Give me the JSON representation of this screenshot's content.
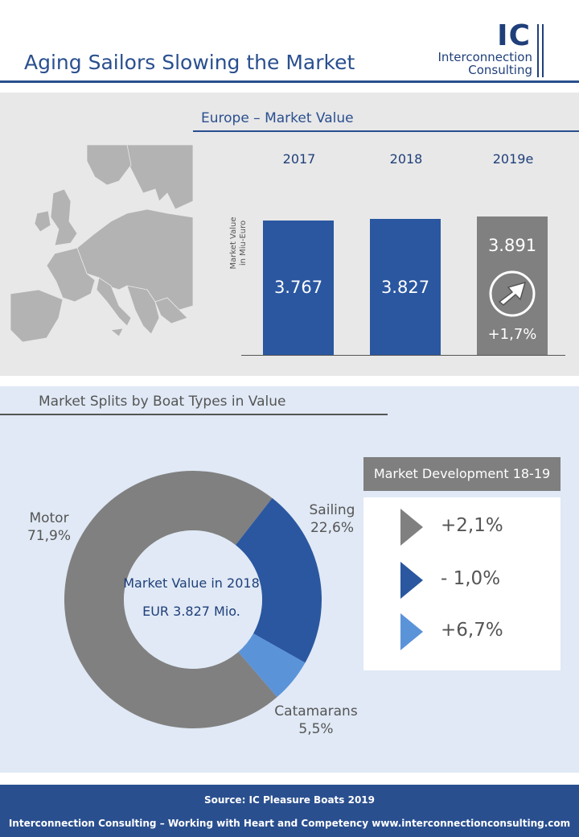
{
  "header": {
    "title": "Aging Sailors Slowing the Market",
    "logo": {
      "mark": "IC",
      "line1": "Interconnection",
      "line2": "Consulting"
    }
  },
  "colors": {
    "brand_blue": "#2a4f8f",
    "bar_blue": "#2a57a0",
    "forecast_gray": "#808080",
    "motor_gray": "#808080",
    "sailing_blue": "#2a57a0",
    "catamaran_lightblue": "#5b93d9"
  },
  "europe": {
    "title": "Europe – Market Value",
    "map_icon": "europe-map",
    "ylabel_line1": "Market Value",
    "ylabel_line2": "in Miu-Euro",
    "arrow_icon": "arrow-up-right-circle-icon"
  },
  "chart_data": [
    {
      "type": "bar",
      "title": "Europe – Market Value",
      "categories": [
        "2017",
        "2018",
        "2019e"
      ],
      "values": [
        3767,
        3827,
        3891
      ],
      "value_labels": [
        "3.767",
        "3.827",
        "3.891"
      ],
      "ylabel": "Market Value in Miu-Euro",
      "ylim": [
        0,
        3891
      ],
      "forecast_index": 2,
      "growth_label": "+1,7%",
      "grid": false
    },
    {
      "type": "pie",
      "title": "Market Splits by Boat Types in Value",
      "categories": [
        "Motor",
        "Sailing",
        "Catamarans"
      ],
      "values": [
        71.9,
        22.6,
        5.5
      ],
      "value_labels": [
        "71,9%",
        "22,6%",
        "5,5%"
      ],
      "center_line1": "Market Value in 2018",
      "center_line2": "EUR 3.827 Mio."
    }
  ],
  "market_development": {
    "title": "Market Development 18-19",
    "rows": [
      {
        "value": "+2,1%",
        "color": "#808080",
        "icon": "triangle-right-icon"
      },
      {
        "value": "- 1,0%",
        "color": "#2a57a0",
        "icon": "triangle-right-icon"
      },
      {
        "value": "+6,7%",
        "color": "#5b93d9",
        "icon": "triangle-right-icon"
      }
    ]
  },
  "footer": {
    "source": "Source: IC Pleasure Boats 2019",
    "tagline": "Interconnection Consulting – Working with Heart and Competency  www.interconnectionconsulting.com"
  }
}
